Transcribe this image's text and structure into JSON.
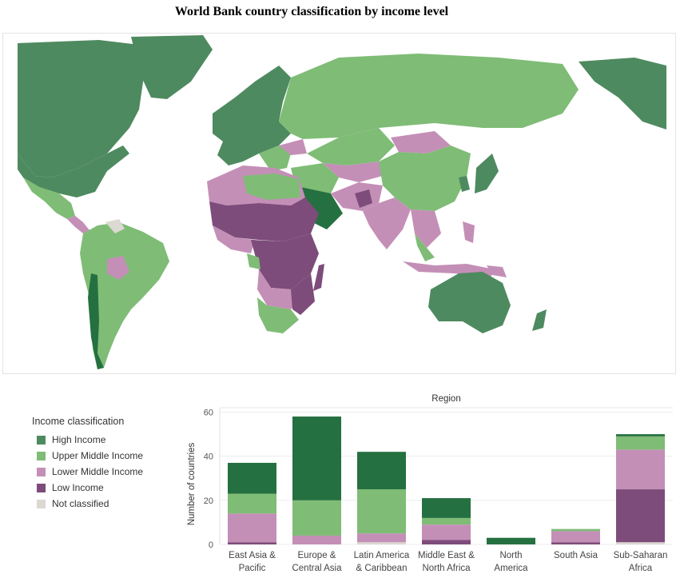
{
  "title": "World Bank country classification by income level",
  "colors": {
    "high": "#257040",
    "hi_map": "#4e8a5f",
    "upper": "#7fbc76",
    "lower": "#c48fb7",
    "low": "#7d4c7a",
    "na": "#dcd8d2",
    "ocean": "#ffffff",
    "border": "#ffffff"
  },
  "legend": {
    "title": "Income classification",
    "items": [
      {
        "label": "High Income",
        "color": "#4e8a5f"
      },
      {
        "label": "Upper Middle Income",
        "color": "#7fbc76"
      },
      {
        "label": "Lower Middle Income",
        "color": "#c48fb7"
      },
      {
        "label": "Low Income",
        "color": "#7d4c7a"
      },
      {
        "label": "Not classified",
        "color": "#dcd8d2"
      }
    ]
  },
  "chart_data": {
    "type": "bar",
    "stacked": true,
    "title": "Region",
    "xlabel": "",
    "ylabel": "Number of countries",
    "ylim": [
      0,
      62
    ],
    "yticks": [
      0,
      20,
      40,
      60
    ],
    "grid": true,
    "categories": [
      "East Asia &\nPacific",
      "Europe &\nCentral Asia",
      "Latin America\n& Caribbean",
      "Middle East &\nNorth Africa",
      "North\nAmerica",
      "South Asia",
      "Sub-Saharan\nAfrica"
    ],
    "series": [
      {
        "name": "Not classified",
        "color": "#dcd8d2",
        "values": [
          0,
          0,
          1,
          0,
          0,
          0,
          1
        ]
      },
      {
        "name": "Low Income",
        "color": "#7d4c7a",
        "values": [
          1,
          0,
          0,
          2,
          0,
          1,
          24
        ]
      },
      {
        "name": "Lower Middle Income",
        "color": "#c48fb7",
        "values": [
          13,
          4,
          4,
          7,
          0,
          5,
          18
        ]
      },
      {
        "name": "Upper Middle Income",
        "color": "#7fbc76",
        "values": [
          9,
          16,
          20,
          3,
          0,
          1,
          6
        ]
      },
      {
        "name": "High Income",
        "color": "#257040",
        "values": [
          14,
          38,
          17,
          9,
          3,
          0,
          1
        ]
      }
    ]
  }
}
